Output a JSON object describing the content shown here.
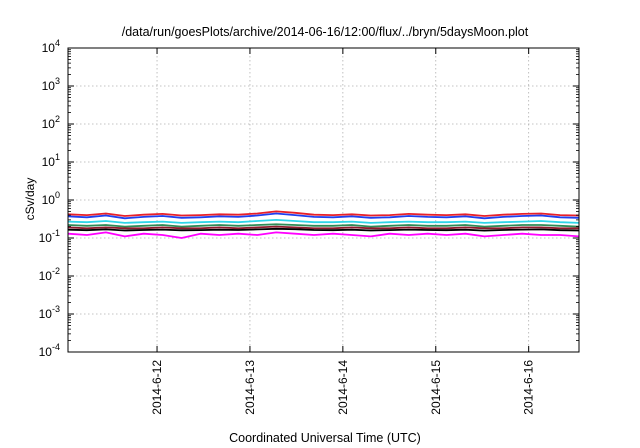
{
  "chart_data": {
    "type": "line",
    "title": "/data/run/goesPlots/archive/2014-06-16/12:00/flux/../bryn/5daysMoon.plot",
    "xlabel": "Coordinated Universal Time (UTC)",
    "ylabel": "cSv/day",
    "yscale": "log",
    "ylim": [
      0.0001,
      10000
    ],
    "xlim": [
      "2014-06-11 01:00",
      "2014-06-16 13:00"
    ],
    "grid": true,
    "x_ticks": [
      "2014-6-12",
      "2014-6-13",
      "2014-6-14",
      "2014-6-15",
      "2014-6-16"
    ],
    "y_ticks": [
      {
        "base": "10",
        "exp": "-4"
      },
      {
        "base": "10",
        "exp": "-3"
      },
      {
        "base": "10",
        "exp": "-2"
      },
      {
        "base": "10",
        "exp": "-1"
      },
      {
        "base": "10",
        "exp": "0"
      },
      {
        "base": "10",
        "exp": "1"
      },
      {
        "base": "10",
        "exp": "2"
      },
      {
        "base": "10",
        "exp": "3"
      },
      {
        "base": "10",
        "exp": "4"
      }
    ],
    "series": [
      {
        "color": "#e8202a",
        "values": [
          0.42,
          0.4,
          0.44,
          0.38,
          0.41,
          0.43,
          0.39,
          0.4,
          0.42,
          0.41,
          0.44,
          0.5,
          0.46,
          0.41,
          0.4,
          0.42,
          0.39,
          0.4,
          0.43,
          0.41,
          0.4,
          0.42,
          0.38,
          0.41,
          0.43,
          0.44,
          0.4,
          0.39
        ]
      },
      {
        "color": "#1f3ff0",
        "values": [
          0.37,
          0.35,
          0.39,
          0.33,
          0.36,
          0.38,
          0.34,
          0.35,
          0.37,
          0.36,
          0.39,
          0.44,
          0.4,
          0.36,
          0.35,
          0.37,
          0.34,
          0.35,
          0.38,
          0.36,
          0.35,
          0.37,
          0.33,
          0.36,
          0.38,
          0.39,
          0.35,
          0.34
        ]
      },
      {
        "color": "#2fd5e8",
        "values": [
          0.27,
          0.26,
          0.28,
          0.25,
          0.26,
          0.27,
          0.25,
          0.26,
          0.27,
          0.26,
          0.28,
          0.3,
          0.28,
          0.26,
          0.26,
          0.27,
          0.25,
          0.26,
          0.27,
          0.26,
          0.26,
          0.27,
          0.25,
          0.26,
          0.27,
          0.28,
          0.26,
          0.25
        ]
      },
      {
        "color": "#2e8b57",
        "values": [
          0.22,
          0.21,
          0.22,
          0.2,
          0.21,
          0.22,
          0.2,
          0.21,
          0.22,
          0.21,
          0.22,
          0.23,
          0.22,
          0.21,
          0.21,
          0.22,
          0.2,
          0.21,
          0.22,
          0.21,
          0.21,
          0.22,
          0.2,
          0.21,
          0.22,
          0.22,
          0.21,
          0.2
        ]
      },
      {
        "color": "#8b1a2b",
        "values": [
          0.19,
          0.18,
          0.19,
          0.18,
          0.18,
          0.19,
          0.18,
          0.18,
          0.19,
          0.18,
          0.19,
          0.2,
          0.19,
          0.18,
          0.18,
          0.19,
          0.18,
          0.18,
          0.19,
          0.18,
          0.18,
          0.19,
          0.18,
          0.18,
          0.19,
          0.19,
          0.18,
          0.18
        ]
      },
      {
        "color": "#000000",
        "values": [
          0.165,
          0.16,
          0.168,
          0.158,
          0.162,
          0.166,
          0.159,
          0.161,
          0.165,
          0.162,
          0.168,
          0.175,
          0.17,
          0.162,
          0.16,
          0.165,
          0.158,
          0.161,
          0.166,
          0.162,
          0.16,
          0.165,
          0.157,
          0.162,
          0.166,
          0.168,
          0.16,
          0.158
        ]
      },
      {
        "color": "#ff00ff",
        "values": [
          0.13,
          0.12,
          0.14,
          0.11,
          0.13,
          0.12,
          0.1,
          0.13,
          0.12,
          0.13,
          0.12,
          0.14,
          0.13,
          0.12,
          0.13,
          0.12,
          0.11,
          0.13,
          0.12,
          0.13,
          0.12,
          0.13,
          0.11,
          0.12,
          0.13,
          0.12,
          0.12,
          0.11
        ]
      }
    ]
  }
}
